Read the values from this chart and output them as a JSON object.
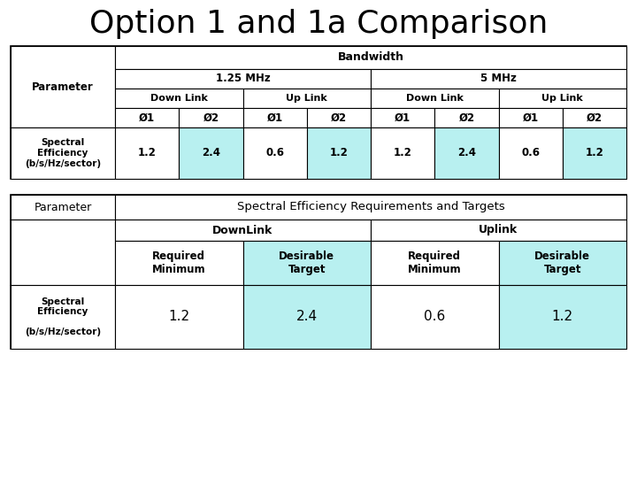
{
  "title": "Option 1 and 1a Comparison",
  "title_fontsize": 26,
  "background_color": "#ffffff",
  "light_blue": "#b8f0f0",
  "table1": {
    "header1": "Bandwidth",
    "header2_1": "1.25 MHz",
    "header2_2": "5 MHz",
    "header3": [
      "Down Link",
      "Up Link",
      "Down Link",
      "Up Link"
    ],
    "header4": [
      "Ø1",
      "Ø2",
      "Ø1",
      "Ø2",
      "Ø1",
      "Ø2",
      "Ø1",
      "Ø2"
    ],
    "row_label": "Spectral\nEfficiency\n(b/s/Hz/sector)",
    "row_values": [
      "1.2",
      "2.4",
      "0.6",
      "1.2",
      "1.2",
      "2.4",
      "0.6",
      "1.2"
    ],
    "shaded_cols": [
      1,
      3,
      5,
      7
    ]
  },
  "table2": {
    "col0_label": "Parameter",
    "header1": "Spectral Efficiency Requirements and Targets",
    "header2_1": "DownLink",
    "header2_2": "Uplink",
    "header3_1": "Required\nMinimum",
    "header3_2": "Desirable\nTarget",
    "header3_3": "Required\nMinimum",
    "header3_4": "Desirable\nTarget",
    "row_label": "Spectral\nEfficiency\n\n(b/s/Hz/sector)",
    "row_values": [
      "1.2",
      "2.4",
      "0.6",
      "1.2"
    ],
    "shaded_cols": [
      1,
      3
    ]
  }
}
